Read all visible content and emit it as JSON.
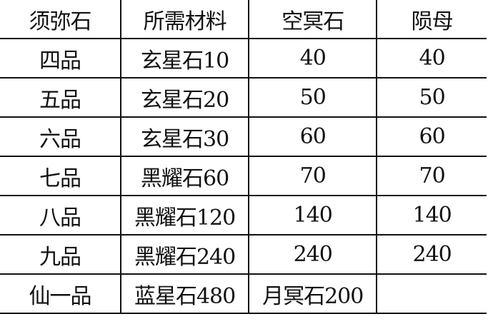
{
  "table": {
    "headers": [
      "须弥石",
      "所需材料",
      "空冥石",
      "陨母"
    ],
    "rows": [
      [
        "四品",
        "玄星石10",
        "40",
        "40"
      ],
      [
        "五品",
        "玄星石20",
        "50",
        "50"
      ],
      [
        "六品",
        "玄星石30",
        "60",
        "60"
      ],
      [
        "七品",
        "黑耀石60",
        "70",
        "70"
      ],
      [
        "八品",
        "黑耀石120",
        "140",
        "140"
      ],
      [
        "九品",
        "黑耀石240",
        "240",
        "240"
      ],
      [
        "仙一品",
        "蓝星石480",
        "月冥石200",
        ""
      ]
    ]
  }
}
